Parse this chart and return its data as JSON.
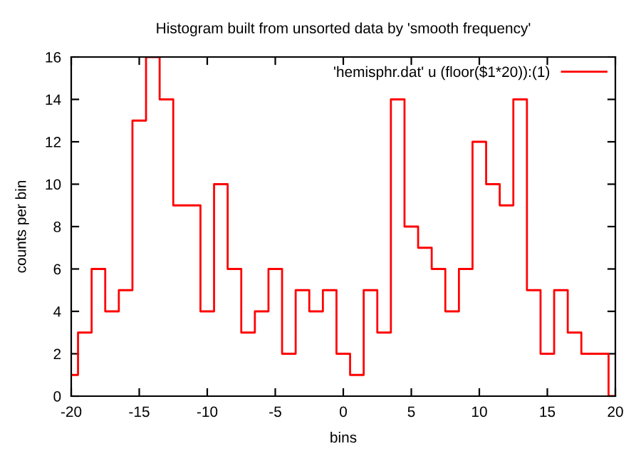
{
  "chart_data": {
    "type": "step",
    "title": "Histogram built from unsorted data by 'smooth frequency'",
    "xlabel": "bins",
    "ylabel": "counts per bin",
    "x": [
      -20,
      -19,
      -18,
      -17,
      -16,
      -15,
      -14,
      -13,
      -12,
      -11,
      -10,
      -9,
      -8,
      -7,
      -6,
      -5,
      -4,
      -3,
      -2,
      -1,
      0,
      1,
      2,
      3,
      4,
      5,
      6,
      7,
      8,
      9,
      10,
      11,
      12,
      13,
      14,
      15,
      16,
      17,
      18,
      19,
      20
    ],
    "series": [
      {
        "name": "'hemisphr.dat' u (floor($1*20)):(1)",
        "color": "#ff0000",
        "values": [
          1,
          3,
          6,
          4,
          5,
          13,
          16,
          14,
          9,
          9,
          4,
          10,
          6,
          3,
          4,
          6,
          2,
          5,
          4,
          5,
          2,
          1,
          5,
          3,
          14,
          8,
          7,
          6,
          4,
          6,
          12,
          10,
          9,
          14,
          5,
          2,
          5,
          3,
          2,
          2,
          0
        ]
      }
    ],
    "xlim": [
      -20,
      20
    ],
    "ylim": [
      0,
      16
    ],
    "xticks": [
      -20,
      -15,
      -10,
      -5,
      0,
      5,
      10,
      15,
      20
    ],
    "yticks": [
      0,
      2,
      4,
      6,
      8,
      10,
      12,
      14,
      16
    ],
    "grid": false,
    "legend": "top right"
  }
}
